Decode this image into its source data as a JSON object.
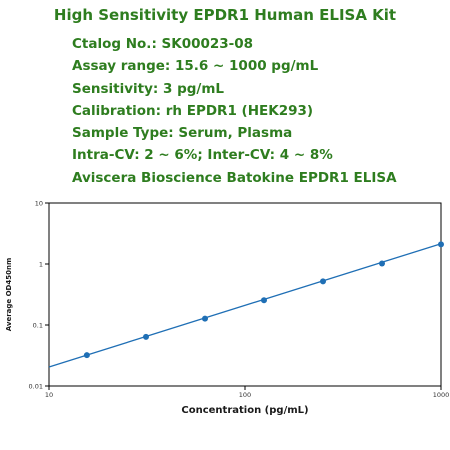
{
  "header": {
    "title": "High Sensitivity EPDR1 Human ELISA Kit",
    "lines": [
      "Ctalog No.: SK00023-08",
      "Assay range: 15.6 ~ 1000 pg/mL",
      "Sensitivity: 3 pg/mL",
      "Calibration: rh EPDR1 (HEK293)",
      "Sample Type: Serum, Plasma",
      "Intra-CV: 2 ~ 6%; Inter-CV:  4 ~ 8%",
      "Aviscera Bioscience Batokine EPDR1 ELISA"
    ]
  },
  "colors": {
    "header_text": "#2e7d1f",
    "series_line": "#1f6fb5",
    "series_marker": "#1f6fb5",
    "axis": "#000000"
  },
  "chart_data": {
    "type": "line",
    "xlabel": "Concentration (pg/mL)",
    "ylabel": "Average OD450nm",
    "xscale": "log",
    "yscale": "log",
    "xlim": [
      10,
      1000
    ],
    "ylim": [
      0.01,
      10
    ],
    "x_ticks": [
      10,
      100,
      1000
    ],
    "x_tick_labels": [
      "10",
      "100",
      "1000"
    ],
    "y_ticks": [
      0.01,
      0.1,
      1,
      10
    ],
    "y_tick_labels": [
      "0.01",
      "0.1",
      "1",
      "10"
    ],
    "grid": false,
    "legend": "none",
    "points": {
      "x": [
        15.6,
        31.25,
        62.5,
        125,
        250,
        500,
        1000
      ],
      "y": [
        0.032,
        0.064,
        0.127,
        0.255,
        0.52,
        1.02,
        2.1
      ]
    },
    "fit_line": {
      "x": [
        10,
        1000
      ],
      "y": [
        0.0205,
        2.15
      ]
    }
  }
}
